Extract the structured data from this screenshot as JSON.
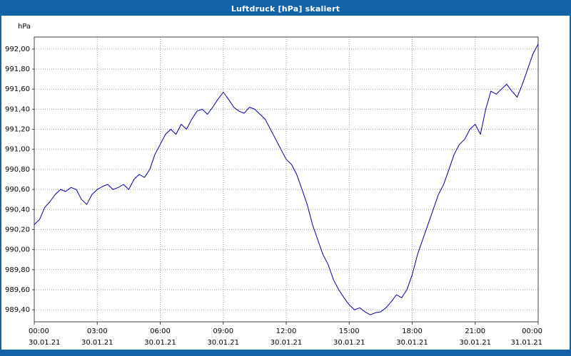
{
  "window": {
    "title": "Luftdruck [hPa] skaliert"
  },
  "colors": {
    "frame": "#1263a8",
    "titlebar_bg": "#1263a8",
    "titlebar_text": "#ffffff",
    "plot_background": "#ffffff",
    "line": "#0000a0",
    "grid": "#9a9a9a",
    "axis": "#404040",
    "label_text": "#000000"
  },
  "chart_data": {
    "type": "line",
    "title": "Luftdruck [hPa] skaliert",
    "ylabel": "hPa",
    "xlabel": "",
    "grid": true,
    "legend": "none",
    "ylim": [
      989.28,
      992.12
    ],
    "yticks": [
      989.4,
      989.6,
      989.8,
      990.0,
      990.2,
      990.4,
      990.6,
      990.8,
      991.0,
      991.2,
      991.4,
      991.6,
      991.8,
      992.0
    ],
    "ytick_labels": [
      "989,40",
      "989,60",
      "989,80",
      "990,00",
      "990,20",
      "990,40",
      "990,60",
      "990,80",
      "991,00",
      "991,20",
      "991,40",
      "991,60",
      "991,80",
      "992,00"
    ],
    "xlim_hours": [
      0,
      24
    ],
    "xticks_hours": [
      0,
      3,
      6,
      9,
      12,
      15,
      18,
      21,
      24
    ],
    "xtick_time_labels": [
      "00:00",
      "03:00",
      "06:00",
      "09:00",
      "12:00",
      "15:00",
      "18:00",
      "21:00",
      "00:00"
    ],
    "xtick_date_labels": [
      "30.01.21",
      "30.01.21",
      "30.01.21",
      "30.01.21",
      "30.01.21",
      "30.01.21",
      "30.01.21",
      "30.01.21",
      "31.01.21"
    ],
    "x_hours": {
      "start": 0,
      "step": 0.25,
      "count": 97
    },
    "series": [
      {
        "name": "Luftdruck",
        "unit": "hPa",
        "values": [
          990.25,
          990.3,
          990.42,
          990.48,
          990.55,
          990.6,
          990.58,
          990.62,
          990.6,
          990.5,
          990.45,
          990.55,
          990.6,
          990.63,
          990.65,
          990.6,
          990.62,
          990.65,
          990.6,
          990.7,
          990.75,
          990.72,
          990.8,
          990.95,
          991.05,
          991.15,
          991.2,
          991.15,
          991.25,
          991.2,
          991.3,
          991.38,
          991.4,
          991.35,
          991.42,
          991.5,
          991.57,
          991.5,
          991.42,
          991.38,
          991.36,
          991.42,
          991.4,
          991.35,
          991.3,
          991.2,
          991.1,
          991.0,
          990.9,
          990.85,
          990.75,
          990.6,
          990.45,
          990.25,
          990.1,
          989.95,
          989.85,
          989.7,
          989.6,
          989.52,
          989.45,
          989.4,
          989.42,
          989.38,
          989.35,
          989.37,
          989.38,
          989.42,
          989.48,
          989.55,
          989.52,
          989.6,
          989.75,
          989.95,
          990.1,
          990.25,
          990.4,
          990.55,
          990.65,
          990.8,
          990.95,
          991.05,
          991.1,
          991.2,
          991.25,
          991.15,
          991.4,
          991.58,
          991.55,
          991.6,
          991.65,
          991.58,
          991.52,
          991.65,
          991.8,
          991.95,
          992.05
        ]
      }
    ]
  }
}
